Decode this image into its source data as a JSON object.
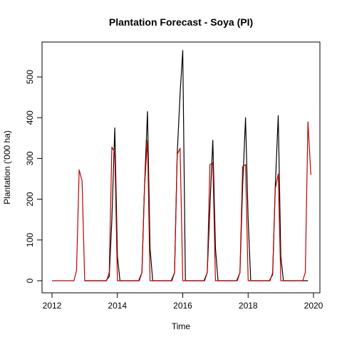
{
  "chart_data": {
    "type": "line",
    "title": "Plantation Forecast - Soya (PI)",
    "xlabel": "Time",
    "ylabel": "Plantation ('000 ha)",
    "xlim": [
      2012,
      2020
    ],
    "ylim": [
      0,
      570
    ],
    "x_ticks": [
      2012,
      2014,
      2016,
      2018,
      2020
    ],
    "x_tick_labels": [
      "2012",
      "2014",
      "2016",
      "2018",
      "2020"
    ],
    "y_ticks": [
      0,
      100,
      200,
      300,
      400,
      500
    ],
    "y_tick_labels": [
      "0",
      "100",
      "200",
      "300",
      "400",
      "500"
    ],
    "grid": false,
    "legend": "none",
    "series": [
      {
        "color": "#000000",
        "x": [
          2013.0,
          2013.65,
          2013.75,
          2013.83,
          2013.92,
          2014.0,
          2014.08,
          2014.65,
          2014.75,
          2014.83,
          2014.92,
          2015.0,
          2015.08,
          2015.65,
          2015.75,
          2015.83,
          2015.92,
          2016.0,
          2016.08,
          2016.65,
          2016.75,
          2016.83,
          2016.92,
          2017.0,
          2017.08,
          2017.65,
          2017.75,
          2017.83,
          2017.92,
          2018.0,
          2018.08,
          2018.65,
          2018.75,
          2018.83,
          2018.92,
          2019.0,
          2019.08,
          2019.83
        ],
        "y": [
          0,
          0,
          10,
          150,
          375,
          60,
          0,
          0,
          20,
          230,
          415,
          80,
          0,
          0,
          20,
          310,
          460,
          565,
          0,
          0,
          20,
          180,
          345,
          80,
          0,
          0,
          20,
          230,
          400,
          150,
          0,
          0,
          15,
          230,
          405,
          60,
          0,
          0
        ]
      },
      {
        "color": "#c00000",
        "x": [
          2012.0,
          2012.08,
          2012.17,
          2012.25,
          2012.33,
          2012.42,
          2012.5,
          2012.58,
          2012.67,
          2012.75,
          2012.83,
          2012.92,
          2013.0,
          2013.08,
          2013.17,
          2013.25,
          2013.33,
          2013.42,
          2013.5,
          2013.58,
          2013.67,
          2013.75,
          2013.83,
          2013.92,
          2014.0,
          2014.08,
          2014.17,
          2014.25,
          2014.33,
          2014.42,
          2014.5,
          2014.58,
          2014.67,
          2014.75,
          2014.83,
          2014.92,
          2015.0,
          2015.08,
          2015.17,
          2015.25,
          2015.33,
          2015.42,
          2015.5,
          2015.58,
          2015.67,
          2015.75,
          2015.83,
          2015.92,
          2016.0,
          2016.08,
          2016.17,
          2016.25,
          2016.33,
          2016.42,
          2016.5,
          2016.58,
          2016.67,
          2016.75,
          2016.83,
          2016.92,
          2017.0,
          2017.08,
          2017.17,
          2017.25,
          2017.33,
          2017.42,
          2017.5,
          2017.58,
          2017.67,
          2017.75,
          2017.83,
          2017.92,
          2018.0,
          2018.08,
          2018.17,
          2018.25,
          2018.33,
          2018.42,
          2018.5,
          2018.58,
          2018.67,
          2018.75,
          2018.83,
          2018.92,
          2019.0,
          2019.08,
          2019.17,
          2019.25,
          2019.33,
          2019.42,
          2019.5,
          2019.58,
          2019.67,
          2019.75,
          2019.83,
          2019.92
        ],
        "y": [
          0,
          0,
          0,
          0,
          0,
          0,
          0,
          0,
          0,
          25,
          272,
          245,
          0,
          0,
          0,
          0,
          0,
          0,
          0,
          0,
          0,
          20,
          328,
          315,
          0,
          0,
          0,
          0,
          0,
          0,
          0,
          0,
          0,
          20,
          230,
          345,
          0,
          0,
          0,
          0,
          0,
          0,
          0,
          0,
          0,
          20,
          310,
          325,
          0,
          0,
          0,
          0,
          0,
          0,
          0,
          0,
          0,
          20,
          285,
          290,
          0,
          0,
          0,
          0,
          0,
          0,
          0,
          0,
          0,
          20,
          280,
          285,
          0,
          0,
          0,
          0,
          0,
          0,
          0,
          0,
          0,
          20,
          225,
          262,
          0,
          0,
          0,
          0,
          0,
          0,
          0,
          0,
          0,
          20,
          390,
          260
        ]
      }
    ]
  }
}
